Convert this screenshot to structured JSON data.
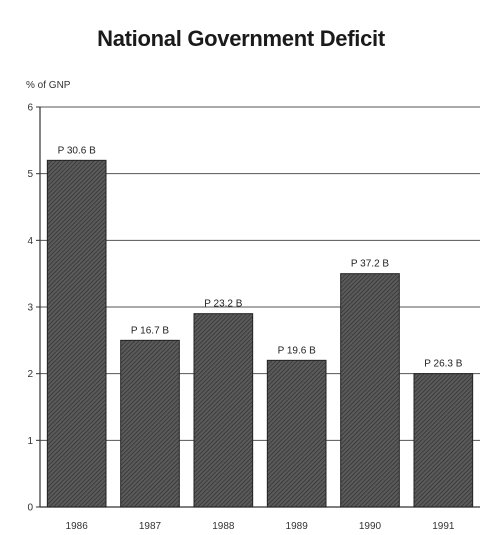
{
  "chart_data": {
    "type": "bar",
    "title": "National Government Deficit",
    "ylabel": "% of GNP",
    "xlabel": "",
    "categories": [
      "1986",
      "1987",
      "1988",
      "1989",
      "1990",
      "1991"
    ],
    "values": [
      5.2,
      2.5,
      2.9,
      2.2,
      3.5,
      2.0
    ],
    "data_labels": [
      "P 30.6 B",
      "P 16.7 B",
      "P 23.2 B",
      "P 19.6 B",
      "P 37.2 B",
      "P 26.3 B"
    ],
    "yticks": [
      "0",
      "1",
      "2",
      "3",
      "4",
      "5",
      "6"
    ],
    "ylim": [
      0,
      6
    ],
    "grid": true,
    "bar_color": "#4a4a4a"
  }
}
